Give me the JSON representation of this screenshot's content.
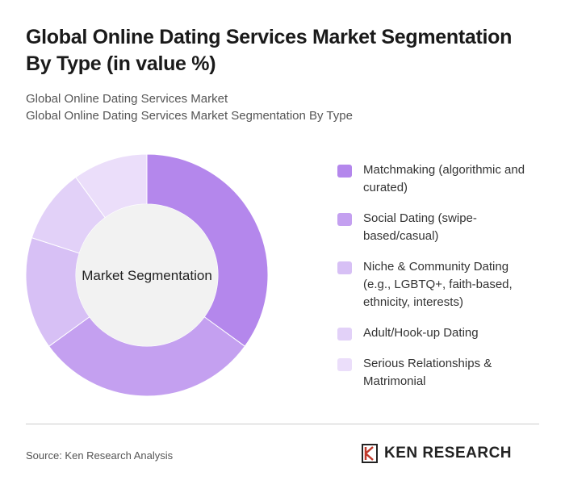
{
  "chart_data": {
    "type": "donut",
    "title": "Global Online Dating Services Market Segmentation By Type (in value %)",
    "subtitle_lines": [
      "Global Online Dating Services Market",
      "Global Online Dating Services Market Segmentation By Type"
    ],
    "center_label": "Market Segmentation",
    "categories": [
      "Matchmaking (algorithmic and curated)",
      "Social Dating (swipe-based/casual)",
      "Niche & Community Dating (e.g., LGBTQ+, faith-based, ethnicity, interests)",
      "Adult/Hook-up Dating",
      "Serious Relationships & Matrimonial"
    ],
    "values": [
      35,
      30,
      15,
      10,
      10
    ],
    "colors": [
      "#b487ec",
      "#c4a0f0",
      "#d7c0f5",
      "#e2d1f8",
      "#ebdefa"
    ],
    "source": "Source: Ken Research Analysis",
    "logo": "KEN RESEARCH"
  }
}
